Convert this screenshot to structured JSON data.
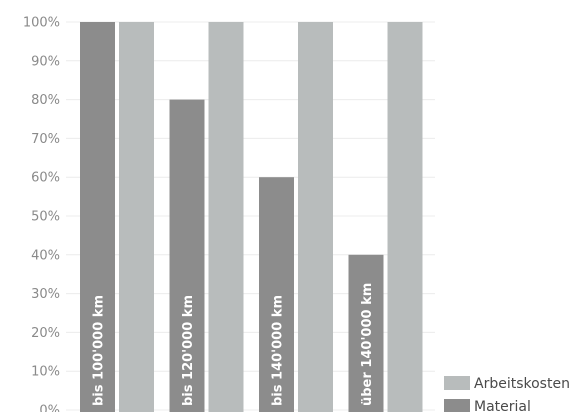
{
  "chart_data": {
    "type": "bar",
    "categories": [
      "bis 100'000 km",
      "bis 120'000 km",
      "bis 140'000 km",
      "über 140'000 km"
    ],
    "series": [
      {
        "name": "Material",
        "values": [
          100,
          80,
          60,
          40
        ],
        "color": "#8c8c8c"
      },
      {
        "name": "Arbeitskosten",
        "values": [
          100,
          100,
          100,
          100
        ],
        "color": "#b8bcbc"
      }
    ],
    "ylim": [
      0,
      100
    ],
    "yticks": [
      "0%",
      "10%",
      "20%",
      "30%",
      "40%",
      "50%",
      "60%",
      "70%",
      "80%",
      "90%",
      "100%"
    ],
    "title": "",
    "xlabel": "",
    "ylabel": "",
    "grid": true,
    "legend_position": "bottom-right",
    "legend_order": [
      "Arbeitskosten",
      "Material"
    ],
    "category_labels_inside_bars": true
  }
}
